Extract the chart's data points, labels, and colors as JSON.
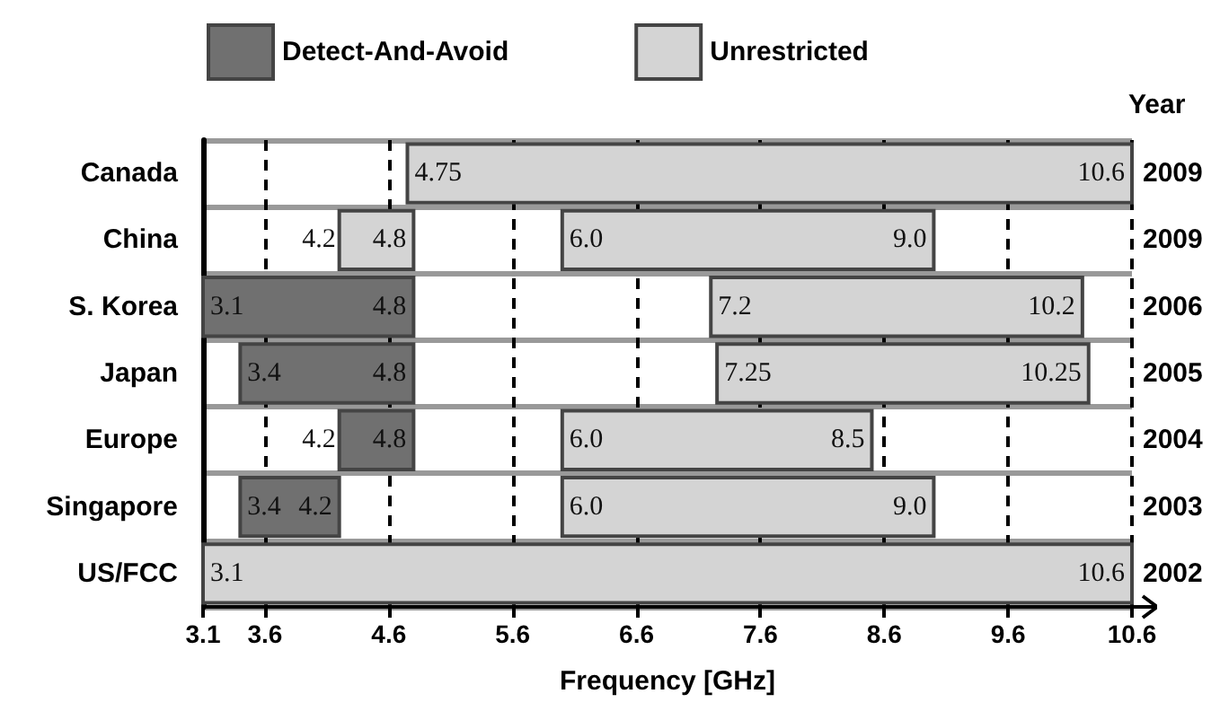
{
  "chart_data": {
    "type": "bar",
    "orientation": "horizontal",
    "xlabel": "Frequency [GHz]",
    "y2label": "Year",
    "categories": [
      "Canada",
      "China",
      "S. Korea",
      "Japan",
      "Europe",
      "Singapore",
      "US/FCC"
    ],
    "y2_categories": [
      "2009",
      "2009",
      "2006",
      "2005",
      "2004",
      "2003",
      "2002"
    ],
    "xlim": [
      3.1,
      10.6
    ],
    "xticks": [
      3.1,
      3.6,
      4.6,
      5.6,
      6.6,
      7.6,
      8.6,
      9.6,
      10.6
    ],
    "grid": true,
    "legend": "top",
    "series": [
      {
        "name": "Detect-And-Avoid",
        "color": "#707070",
        "base": [
          null,
          null,
          3.1,
          3.4,
          4.2,
          3.4,
          null
        ],
        "values": [
          null,
          null,
          1.7,
          1.4,
          0.6,
          0.8,
          null
        ]
      },
      {
        "name": "Unrestricted",
        "color": "#d4d4d4",
        "base": [
          4.75,
          6.0,
          7.2,
          7.25,
          6.0,
          6.0,
          3.1
        ],
        "values": [
          5.85,
          3.0,
          3.0,
          3.0,
          2.5,
          3.0,
          7.5
        ]
      },
      {
        "color": "#d4d4d4",
        "base": [
          null,
          4.2,
          null,
          null,
          null,
          null,
          null
        ],
        "values": [
          null,
          0.6,
          null,
          null,
          null,
          null,
          null
        ]
      }
    ],
    "annotations": [
      {
        "text": "4.75",
        "x": 4.75,
        "y": "Canada"
      },
      {
        "text": "10.6",
        "x": 10.6,
        "y": "Canada"
      },
      {
        "text": "4.2",
        "x": 4.2,
        "y": "China"
      },
      {
        "text": "4.8",
        "x": 4.8,
        "y": "China"
      },
      {
        "text": "6.0",
        "x": 6.0,
        "y": "China"
      },
      {
        "text": "9.0",
        "x": 9.0,
        "y": "China"
      },
      {
        "text": "3.1",
        "x": 3.1,
        "y": "S. Korea"
      },
      {
        "text": "4.8",
        "x": 4.8,
        "y": "S. Korea"
      },
      {
        "text": "7.2",
        "x": 7.2,
        "y": "S. Korea"
      },
      {
        "text": "10.2",
        "x": 10.2,
        "y": "S. Korea"
      },
      {
        "text": "3.4",
        "x": 3.4,
        "y": "Japan"
      },
      {
        "text": "4.8",
        "x": 4.8,
        "y": "Japan"
      },
      {
        "text": "7.25",
        "x": 7.25,
        "y": "Japan"
      },
      {
        "text": "10.25",
        "x": 10.25,
        "y": "Japan"
      },
      {
        "text": "4.2",
        "x": 4.2,
        "y": "Europe"
      },
      {
        "text": "4.8",
        "x": 4.8,
        "y": "Europe"
      },
      {
        "text": "6.0",
        "x": 6.0,
        "y": "Europe"
      },
      {
        "text": "8.5",
        "x": 8.5,
        "y": "Europe"
      },
      {
        "text": "3.4",
        "x": 3.4,
        "y": "Singapore"
      },
      {
        "text": "4.2",
        "x": 4.2,
        "y": "Singapore"
      },
      {
        "text": "6.0",
        "x": 6.0,
        "y": "Singapore"
      },
      {
        "text": "9.0",
        "x": 9.0,
        "y": "Singapore"
      },
      {
        "text": "3.1",
        "x": 3.1,
        "y": "US/FCC"
      },
      {
        "text": "10.6",
        "x": 10.6,
        "y": "US/FCC"
      }
    ]
  }
}
